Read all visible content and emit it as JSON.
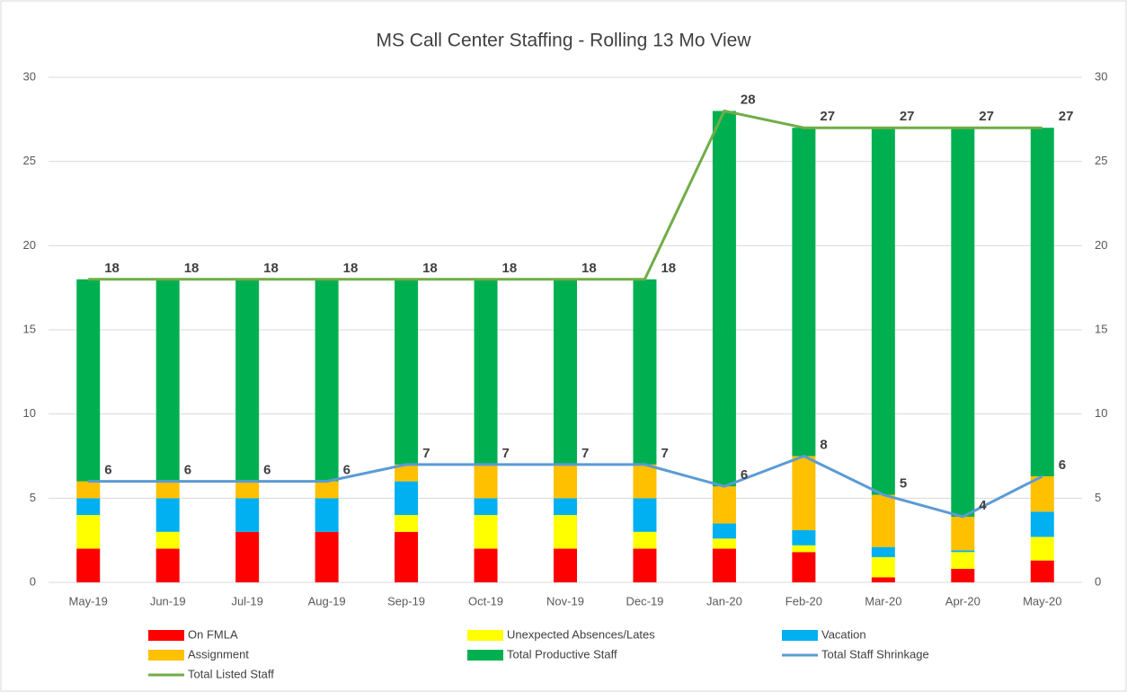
{
  "chart_data": {
    "type": "bar",
    "stacked": true,
    "title": "MS Call Center Staffing - Rolling 13 Mo View",
    "categories": [
      "May-19",
      "Jun-19",
      "Jul-19",
      "Aug-19",
      "Sep-19",
      "Oct-19",
      "Nov-19",
      "Dec-19",
      "Jan-20",
      "Feb-20",
      "Mar-20",
      "Apr-20",
      "May-20"
    ],
    "series": [
      {
        "name": "On FMLA",
        "color": "#ff0000",
        "values": [
          2,
          2,
          3,
          3,
          3,
          2,
          2,
          2,
          2,
          1.8,
          0.3,
          0.8,
          1.3
        ]
      },
      {
        "name": "Unexpected Absences/Lates",
        "color": "#ffff00",
        "values": [
          2,
          1,
          0,
          0,
          1,
          2,
          2,
          1,
          0.6,
          0.4,
          1.2,
          1.0,
          1.4
        ]
      },
      {
        "name": "Vacation",
        "color": "#00b0f0",
        "values": [
          1,
          2,
          2,
          2,
          2,
          1,
          1,
          2,
          0.9,
          0.9,
          0.6,
          0.1,
          1.5
        ]
      },
      {
        "name": "Assignment",
        "color": "#ffc000",
        "values": [
          1,
          1,
          1,
          1,
          1,
          2,
          2,
          2,
          2.2,
          4.4,
          3.1,
          2.0,
          2.1
        ]
      },
      {
        "name": "Total Productive Staff",
        "color": "#00b050",
        "values": [
          12,
          12,
          12,
          12,
          11,
          11,
          11,
          11,
          22.3,
          19.5,
          21.8,
          23.1,
          20.7
        ]
      },
      {
        "name": "Total Staff Shrinkage",
        "color": "#5b9bd5",
        "type": "line",
        "values": [
          6,
          6,
          6,
          6,
          7,
          7,
          7,
          7,
          5.7,
          7.5,
          5.2,
          3.9,
          6.3
        ],
        "value_labels": [
          "6",
          "6",
          "6",
          "6",
          "7",
          "7",
          "7",
          "7",
          "6",
          "8",
          "5",
          "4",
          "6"
        ]
      },
      {
        "name": "Total Listed Staff",
        "color": "#70ad47",
        "type": "line",
        "values": [
          18,
          18,
          18,
          18,
          18,
          18,
          18,
          18,
          28,
          27,
          27,
          27,
          27
        ]
      }
    ],
    "ylim": [
      0,
      30
    ],
    "yticks": [
      0,
      5,
      10,
      15,
      20,
      25,
      30
    ],
    "y2lim": [
      0,
      30
    ],
    "y2ticks": [
      0,
      5,
      10,
      15,
      20,
      25,
      30
    ],
    "grid": true
  }
}
